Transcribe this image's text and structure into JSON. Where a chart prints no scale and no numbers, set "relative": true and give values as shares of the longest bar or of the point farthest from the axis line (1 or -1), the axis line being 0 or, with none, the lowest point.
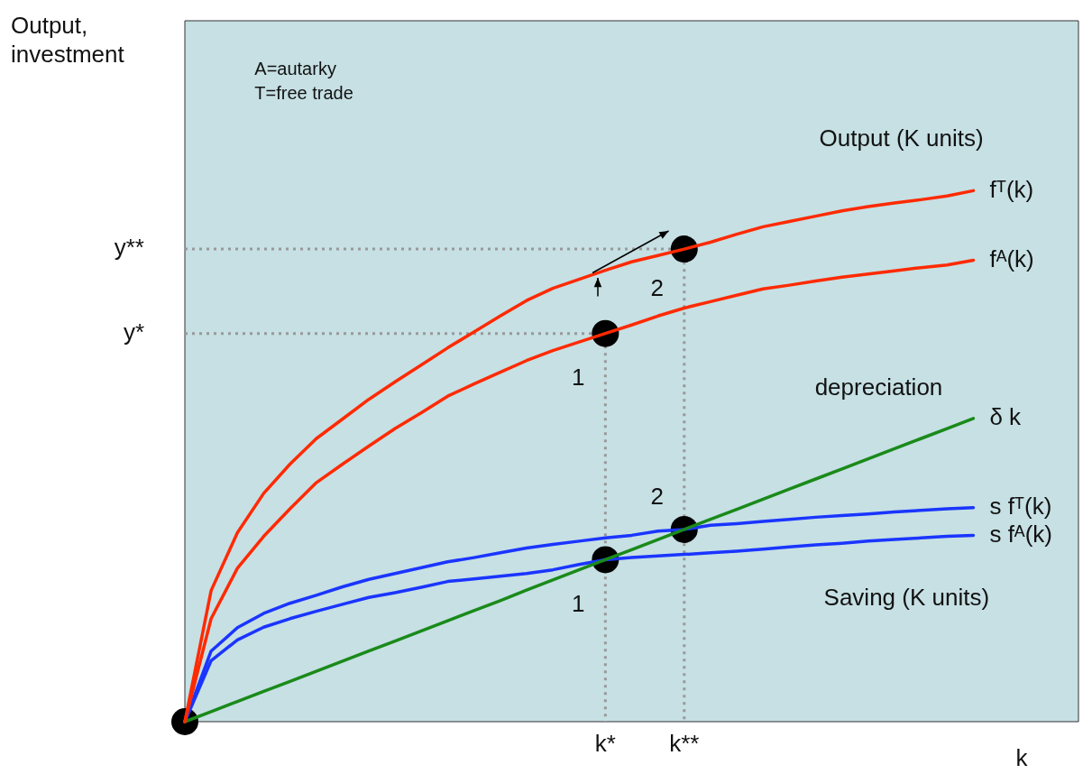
{
  "chart_data": {
    "type": "line",
    "xlabel": "k",
    "relative": true,
    "legend": false,
    "categories": [
      null,
      null,
      null,
      null,
      null,
      null,
      null,
      null,
      null,
      null,
      null,
      null,
      null,
      null,
      null,
      null,
      "k*",
      null,
      null,
      "k**",
      null,
      null,
      null,
      null,
      null,
      null,
      null,
      null,
      null,
      null,
      null,
      null,
      null,
      null,
      null
    ],
    "series": [
      {
        "name": "fᵀ(k)",
        "color": "#ff2a00",
        "values": [
          0,
          0.247,
          0.356,
          0.43,
          0.485,
          0.533,
          0.57,
          0.607,
          0.64,
          0.672,
          0.704,
          0.734,
          0.764,
          0.793,
          0.816,
          0.833,
          0.85,
          0.866,
          0.878,
          0.89,
          0.903,
          0.918,
          0.932,
          0.942,
          0.952,
          0.962,
          0.97,
          0.977,
          0.983,
          0.99,
          1,
          null,
          null,
          null,
          null
        ]
      },
      {
        "name": "fᴬ(k)",
        "color": "#ff2a00",
        "values": [
          0,
          0.194,
          0.289,
          0.349,
          0.401,
          0.45,
          0.485,
          0.519,
          0.552,
          0.582,
          0.613,
          0.636,
          0.658,
          0.68,
          0.699,
          0.715,
          0.731,
          0.747,
          0.764,
          0.779,
          0.791,
          0.803,
          0.815,
          0.822,
          0.83,
          0.837,
          0.843,
          0.849,
          0.855,
          0.86,
          0.869,
          null,
          null,
          null,
          null
        ]
      },
      {
        "name": "δ k",
        "color": "#1a8a1a",
        "values": [
          0,
          0.019,
          0.038,
          0.057,
          0.076,
          0.095,
          0.114,
          0.133,
          0.152,
          0.171,
          0.19,
          0.209,
          0.228,
          0.248,
          0.267,
          0.286,
          0.305,
          0.324,
          0.343,
          0.362,
          0.381,
          0.4,
          0.419,
          0.438,
          0.457,
          0.476,
          0.495,
          0.514,
          0.533,
          0.552,
          0.571,
          null,
          null,
          null,
          null
        ]
      },
      {
        "name": "s fᵀ(k)",
        "color": "#1a35ff",
        "values": [
          0,
          0.133,
          0.177,
          0.204,
          0.223,
          0.238,
          0.254,
          0.268,
          0.279,
          0.29,
          0.301,
          0.309,
          0.318,
          0.327,
          0.334,
          0.34,
          0.346,
          0.351,
          0.359,
          0.362,
          0.37,
          0.373,
          0.377,
          0.381,
          0.385,
          0.388,
          0.391,
          0.395,
          0.398,
          0.401,
          0.403,
          null,
          null,
          null,
          null
        ]
      },
      {
        "name": "s fᴬ(k)",
        "color": "#1a35ff",
        "values": [
          0,
          0.115,
          0.154,
          0.178,
          0.194,
          0.208,
          0.221,
          0.234,
          0.243,
          0.253,
          0.264,
          0.269,
          0.274,
          0.279,
          0.286,
          0.296,
          0.305,
          0.309,
          0.312,
          0.315,
          0.318,
          0.321,
          0.325,
          0.329,
          0.333,
          0.336,
          0.34,
          0.343,
          0.346,
          0.349,
          0.351,
          null,
          null,
          null,
          null
        ]
      },
      {
        "type": "scatter",
        "color": "#000000",
        "marker": "circle",
        "values": [
          0,
          null,
          null,
          null,
          null,
          null,
          null,
          null,
          null,
          null,
          null,
          null,
          null,
          null,
          null,
          null,
          0.731,
          null,
          null,
          0.89,
          null,
          null,
          null,
          null,
          null,
          null,
          null,
          null,
          null,
          null,
          null,
          null,
          null,
          null,
          null
        ]
      },
      {
        "type": "scatter",
        "color": "#000000",
        "marker": "circle",
        "values": [
          null,
          null,
          null,
          null,
          null,
          null,
          null,
          null,
          null,
          null,
          null,
          null,
          null,
          null,
          null,
          null,
          0.305,
          null,
          null,
          0.362,
          null,
          null,
          null,
          null,
          null,
          null,
          null,
          null,
          null,
          null,
          null,
          null,
          null,
          null,
          null
        ]
      }
    ],
    "annotations": [
      "Output,\ninvestment",
      "A=autarky",
      "T=free trade",
      "Output (K units)",
      "depreciation",
      "Saving (K units)",
      "1",
      "2",
      "1",
      "2",
      "y*",
      "y**"
    ]
  }
}
